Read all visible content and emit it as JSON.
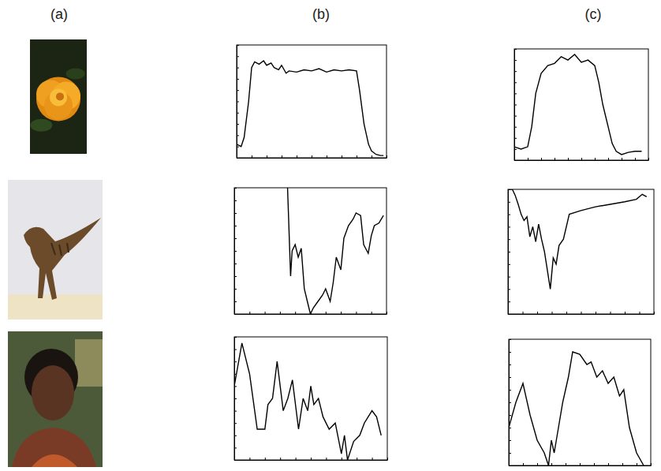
{
  "column_labels": [
    "(a)",
    "(b)",
    "(c)"
  ],
  "chart_data": [
    {
      "type": "line",
      "tick_labels": false,
      "xlim": [
        0,
        100
      ],
      "ylim": [
        0,
        100
      ],
      "xticks": [
        0,
        10,
        20,
        30,
        40,
        50,
        60,
        70,
        80,
        90,
        100
      ],
      "yticks": [
        0,
        10,
        20,
        30,
        40,
        50,
        60,
        70,
        80,
        90,
        100
      ],
      "x": [
        0,
        3,
        5,
        8,
        10,
        12,
        15,
        18,
        20,
        23,
        25,
        28,
        30,
        33,
        35,
        40,
        45,
        50,
        55,
        60,
        65,
        70,
        75,
        80,
        82,
        85,
        88,
        90,
        93,
        96,
        98
      ],
      "values": [
        12,
        10,
        18,
        50,
        80,
        85,
        83,
        86,
        82,
        84,
        80,
        78,
        82,
        75,
        77,
        76,
        78,
        77,
        79,
        76,
        78,
        77,
        78,
        77,
        60,
        30,
        12,
        6,
        3,
        2,
        2
      ],
      "color": "#000000"
    },
    {
      "type": "line",
      "tick_labels": false,
      "xlim": [
        0,
        100
      ],
      "ylim": [
        0,
        100
      ],
      "xticks": [
        0,
        10,
        20,
        30,
        40,
        50,
        60,
        70,
        80,
        90,
        100
      ],
      "yticks": [
        0,
        10,
        20,
        30,
        40,
        50,
        60,
        70,
        80,
        90,
        100
      ],
      "x": [
        0,
        5,
        10,
        13,
        16,
        20,
        25,
        30,
        35,
        40,
        45,
        50,
        55,
        60,
        63,
        66,
        70,
        73,
        76,
        80,
        85,
        90,
        95
      ],
      "values": [
        12,
        10,
        12,
        30,
        60,
        78,
        85,
        87,
        93,
        90,
        95,
        88,
        90,
        85,
        70,
        50,
        30,
        15,
        8,
        5,
        7,
        8,
        8
      ],
      "color": "#000000"
    },
    {
      "type": "line",
      "tick_labels": false,
      "xlim": [
        0,
        100
      ],
      "ylim": [
        0,
        100
      ],
      "xticks": [
        0,
        10,
        20,
        30,
        40,
        50,
        60,
        70,
        80,
        90,
        100
      ],
      "yticks": [
        0,
        10,
        20,
        30,
        40,
        50,
        60,
        70,
        80,
        90,
        100
      ],
      "x": [
        35,
        37,
        38,
        40,
        42,
        44,
        46,
        48,
        50,
        52,
        55,
        58,
        60,
        63,
        65,
        67,
        70,
        72,
        75,
        78,
        80,
        83,
        85,
        88,
        90,
        92,
        95,
        98
      ],
      "values": [
        100,
        30,
        50,
        55,
        45,
        52,
        20,
        10,
        0,
        5,
        10,
        15,
        20,
        10,
        25,
        45,
        35,
        60,
        70,
        75,
        80,
        78,
        55,
        48,
        62,
        70,
        72,
        78
      ],
      "color": "#000000"
    },
    {
      "type": "line",
      "tick_labels": false,
      "xlim": [
        0,
        100
      ],
      "ylim": [
        0,
        100
      ],
      "xticks": [
        0,
        10,
        20,
        30,
        40,
        50,
        60,
        70,
        80,
        90,
        100
      ],
      "yticks": [
        0,
        10,
        20,
        30,
        40,
        50,
        60,
        70,
        80,
        90,
        100
      ],
      "x": [
        0,
        3,
        5,
        7,
        9,
        11,
        13,
        15,
        17,
        19,
        21,
        23,
        25,
        27,
        29,
        31,
        33,
        35,
        38,
        42,
        50,
        60,
        70,
        80,
        88,
        92,
        95
      ],
      "values": [
        100,
        100,
        95,
        88,
        80,
        75,
        78,
        62,
        70,
        58,
        72,
        60,
        50,
        35,
        20,
        45,
        40,
        55,
        60,
        80,
        83,
        86,
        88,
        90,
        92,
        96,
        94
      ],
      "color": "#000000"
    },
    {
      "type": "line",
      "tick_labels": false,
      "xlim": [
        0,
        100
      ],
      "ylim": [
        0,
        100
      ],
      "xticks": [
        0,
        10,
        20,
        30,
        40,
        50,
        60,
        70,
        80,
        90,
        100
      ],
      "yticks": [
        0,
        10,
        20,
        30,
        40,
        50,
        60,
        70,
        80,
        90,
        100
      ],
      "x": [
        0,
        5,
        10,
        15,
        20,
        22,
        25,
        28,
        32,
        35,
        38,
        42,
        45,
        48,
        50,
        52,
        55,
        58,
        62,
        66,
        70,
        72,
        74,
        78,
        82,
        85,
        90,
        93,
        96
      ],
      "values": [
        60,
        95,
        70,
        25,
        25,
        45,
        50,
        80,
        40,
        50,
        65,
        25,
        50,
        40,
        60,
        45,
        50,
        35,
        25,
        30,
        5,
        20,
        0,
        15,
        20,
        30,
        40,
        35,
        20
      ],
      "color": "#000000"
    },
    {
      "type": "line",
      "tick_labels": false,
      "xlim": [
        0,
        100
      ],
      "ylim": [
        0,
        100
      ],
      "xticks": [
        0,
        10,
        20,
        30,
        40,
        50,
        60,
        70,
        80,
        90,
        100
      ],
      "yticks": [
        0,
        10,
        20,
        30,
        40,
        50,
        60,
        70,
        80,
        90,
        100
      ],
      "x": [
        0,
        5,
        10,
        15,
        20,
        25,
        28,
        30,
        32,
        35,
        38,
        42,
        45,
        50,
        55,
        58,
        62,
        66,
        70,
        74,
        78,
        81,
        85,
        90,
        95
      ],
      "values": [
        30,
        50,
        65,
        40,
        20,
        10,
        0,
        20,
        10,
        30,
        50,
        70,
        90,
        88,
        80,
        82,
        70,
        75,
        65,
        70,
        55,
        60,
        30,
        10,
        0
      ],
      "color": "#000000"
    }
  ]
}
